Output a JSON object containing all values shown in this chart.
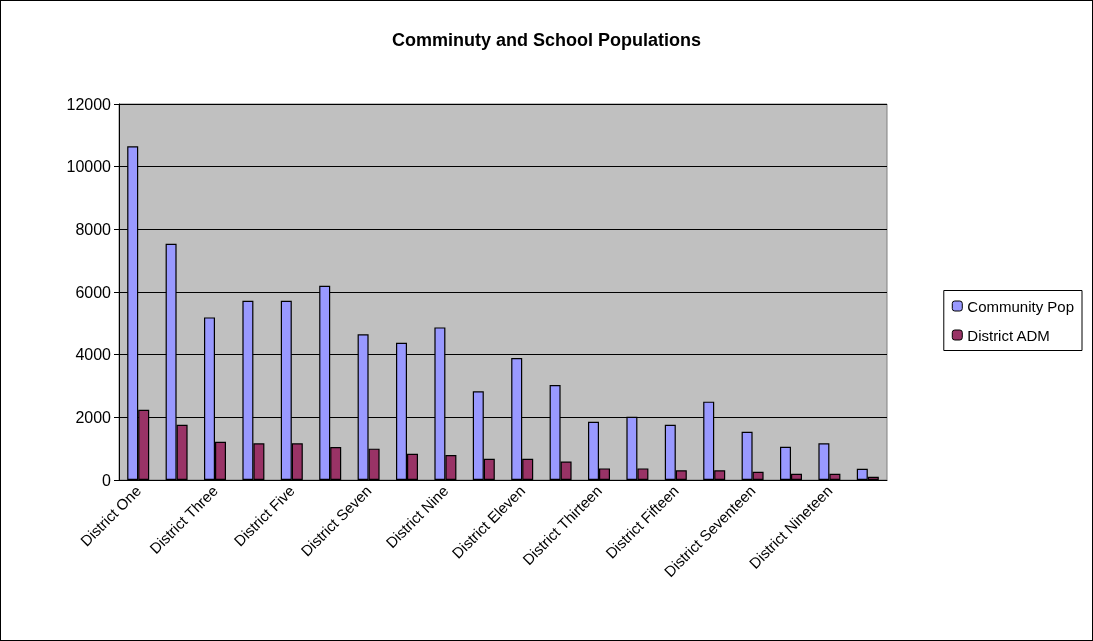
{
  "chart_data": {
    "type": "bar",
    "title": "Comminuty and School Populations",
    "categories": [
      "District One",
      null,
      "District Three",
      null,
      "District Five",
      null,
      "District Seven",
      null,
      "District Nine",
      null,
      "District Eleven",
      null,
      "District Thirteen",
      null,
      "District Fifteen",
      null,
      "District Seventeen",
      null,
      "District Nineteen",
      null
    ],
    "series": [
      {
        "name": "Community Pop",
        "color": "#9999ff",
        "values": [
          10650,
          7540,
          5190,
          5720,
          5720,
          6200,
          4650,
          4380,
          4870,
          2830,
          3890,
          3030,
          1860,
          2020,
          1760,
          2500,
          1540,
          1060,
          1170,
          360
        ]
      },
      {
        "name": "District ADM",
        "color": "#993366",
        "values": [
          2240,
          1760,
          1220,
          1170,
          1170,
          1050,
          1000,
          840,
          800,
          680,
          680,
          590,
          370,
          370,
          310,
          310,
          260,
          200,
          200,
          100
        ]
      }
    ],
    "ylim": [
      0,
      12000
    ],
    "yticks": [
      0,
      2000,
      4000,
      6000,
      8000,
      10000,
      12000
    ],
    "grid": "y",
    "legend": "right"
  }
}
